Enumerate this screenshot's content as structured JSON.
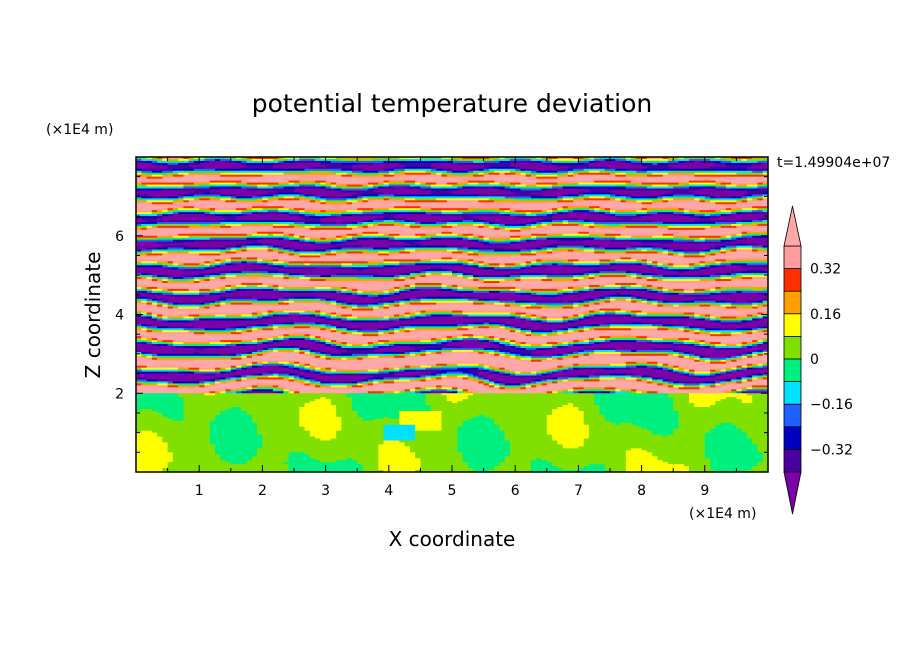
{
  "chart_data": {
    "type": "heatmap",
    "title": "potential temperature deviation",
    "xlabel": "X coordinate",
    "ylabel": "Z coordinate",
    "x_unit": "(×1E4 m)",
    "y_unit": "(×1E4 m)",
    "time_label": "t=1.49904e+07",
    "xlim": [
      0,
      10
    ],
    "ylim": [
      0,
      8
    ],
    "x_ticks": [
      1,
      2,
      3,
      4,
      5,
      6,
      7,
      8,
      9
    ],
    "y_ticks": [
      2,
      4,
      6
    ],
    "grid": false,
    "legend_position": "right",
    "colorbar": {
      "levels": [
        -0.4,
        -0.32,
        -0.24,
        -0.16,
        -0.08,
        0,
        0.08,
        0.16,
        0.24,
        0.32,
        0.4
      ],
      "colors": [
        "#7a00a8",
        "#4a00a0",
        "#0000c0",
        "#2060ff",
        "#00e0ff",
        "#00f080",
        "#80e000",
        "#ffff00",
        "#ffa000",
        "#ff3000",
        "#ff9e9e",
        "#ffa8a8"
      ],
      "tick_values": [
        0.32,
        0.16,
        0,
        -0.16,
        -0.32
      ],
      "tick_labels": [
        "0.32",
        "0.16",
        "0",
        "−0.16",
        "−0.32"
      ]
    },
    "layers": [
      {
        "z_range": [
          0,
          2.0
        ],
        "pattern": "mostly green (0 to +0.08) with lighter green patches"
      },
      {
        "z_range": [
          2.0,
          3.2
        ],
        "pattern": "mixed bands including red and orange (+0.16 to +0.32)"
      },
      {
        "z_range": [
          3.2,
          5.5
        ],
        "pattern": "wavy alternating purple and pink cells"
      },
      {
        "z_range": [
          5.5,
          8.0
        ],
        "pattern": "horizontal alternating purple and pink bands"
      }
    ]
  }
}
